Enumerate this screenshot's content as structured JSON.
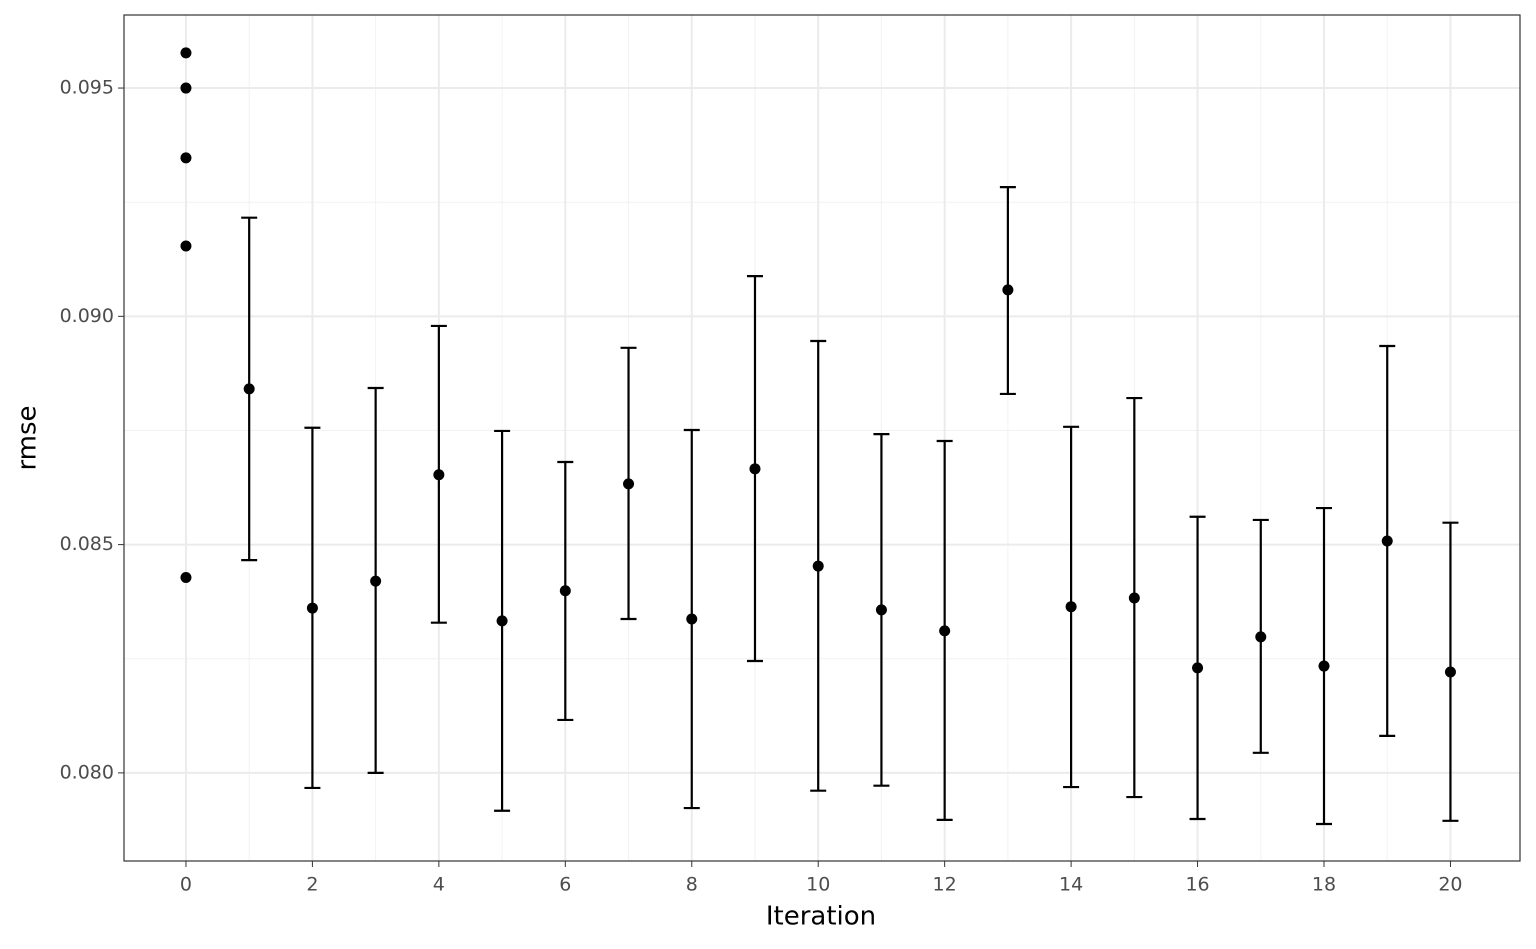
{
  "chart_data": {
    "type": "errorbar",
    "x_label": "Iteration",
    "y_label": "rmse",
    "xlim": [
      -0.98,
      21.1
    ],
    "ylim": [
      0.07807,
      0.0966
    ],
    "xticks": [
      0,
      2,
      4,
      6,
      8,
      10,
      12,
      14,
      16,
      18,
      20
    ],
    "xminor": [
      1,
      3,
      5,
      7,
      9,
      11,
      13,
      15,
      17,
      19
    ],
    "yticks": [
      {
        "value": 0.08,
        "label": "0.080"
      },
      {
        "value": 0.085,
        "label": "0.085"
      },
      {
        "value": 0.09,
        "label": "0.090"
      },
      {
        "value": 0.095,
        "label": "0.095"
      }
    ],
    "yminor": [
      0.0825,
      0.0875,
      0.0925
    ],
    "grid": true,
    "series": [
      {
        "color": "#000000",
        "x": [
          0,
          0,
          0,
          0,
          0
        ],
        "values": [
          0.09577,
          0.095,
          0.09347,
          0.09154,
          0.08428
        ]
      },
      {
        "color": "#000000",
        "x": [
          1,
          2,
          3,
          4,
          5,
          6,
          7,
          8,
          9,
          10,
          11,
          12,
          13,
          14,
          15,
          16,
          17,
          18,
          19,
          20
        ],
        "values": [
          0.08841,
          0.08361,
          0.0842,
          0.08653,
          0.08333,
          0.08399,
          0.08633,
          0.08337,
          0.08666,
          0.08453,
          0.08357,
          0.08311,
          0.09058,
          0.08364,
          0.08383,
          0.0823,
          0.08298,
          0.08234,
          0.08508,
          0.08221
        ],
        "lower": [
          0.08466,
          0.07967,
          0.08,
          0.08329,
          0.07917,
          0.08116,
          0.08337,
          0.07923,
          0.08245,
          0.07961,
          0.07972,
          0.07897,
          0.0883,
          0.07969,
          0.07947,
          0.07899,
          0.08044,
          0.07888,
          0.08081,
          0.07895
        ],
        "upper": [
          0.09216,
          0.08756,
          0.08843,
          0.08979,
          0.08749,
          0.08681,
          0.08931,
          0.08751,
          0.09088,
          0.08946,
          0.08742,
          0.08727,
          0.09283,
          0.08758,
          0.08821,
          0.08561,
          0.08554,
          0.0858,
          0.08935,
          0.08548
        ]
      }
    ]
  }
}
